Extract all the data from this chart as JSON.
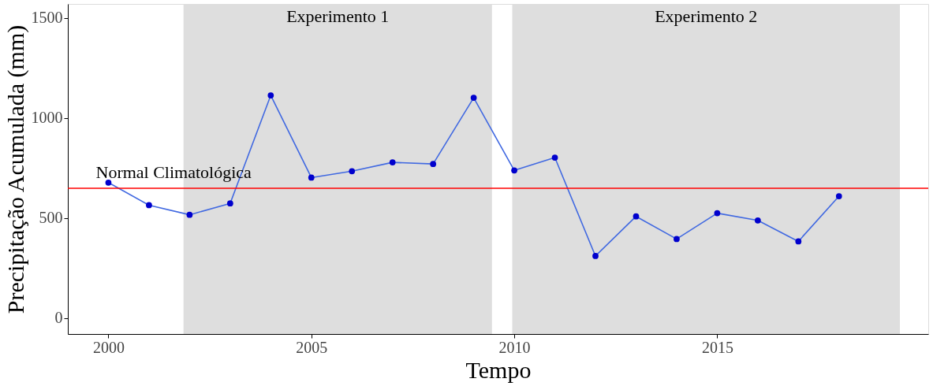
{
  "chart_data": {
    "type": "line",
    "xlabel": "Tempo",
    "ylabel": "Precipitação Acumulada (mm)",
    "x": [
      2000,
      2001,
      2002,
      2003,
      2004,
      2005,
      2006,
      2007,
      2008,
      2009,
      2010,
      2011,
      2012,
      2013,
      2014,
      2015,
      2016,
      2017,
      2018
    ],
    "series": [
      {
        "color": "#0000cd",
        "values": [
          677,
          564,
          516,
          573,
          1113,
          702,
          734,
          778,
          770,
          1101,
          738,
          802,
          310,
          508,
          395,
          524,
          488,
          383,
          609
        ]
      }
    ],
    "marker": "circle",
    "line_style": "solid",
    "grid": false,
    "xlim": [
      1999,
      2020.2
    ],
    "xticks": [
      2000,
      2005,
      2010,
      2015
    ],
    "ylim": [
      -80,
      1570
    ],
    "yticks": [
      0,
      500,
      1000,
      1500
    ],
    "ref_lines": [
      {
        "axis": "y",
        "value": 649,
        "label": "Normal Climatológica",
        "color": "#ff0000"
      }
    ],
    "bands": [
      {
        "axis": "x",
        "from": 2001.85,
        "to": 2009.45,
        "label": "Experimento 1",
        "color": "#dedede"
      },
      {
        "axis": "x",
        "from": 2009.95,
        "to": 2019.5,
        "label": "Experimento 2",
        "color": "#dedede"
      }
    ]
  }
}
